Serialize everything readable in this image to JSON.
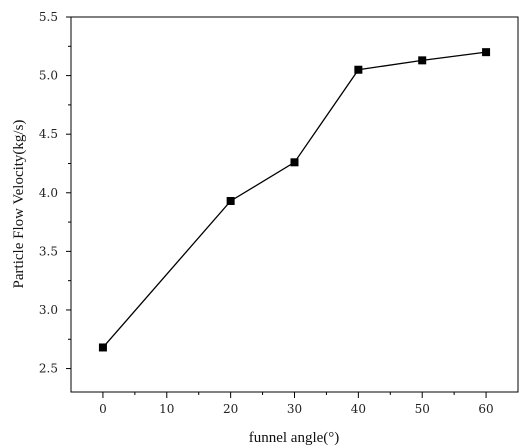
{
  "chart_data": {
    "type": "line",
    "title": "",
    "xlabel": "funnel angle(°)",
    "ylabel": "Particle Flow Velocity(kg/s)",
    "x": [
      0,
      20,
      30,
      40,
      50,
      60
    ],
    "series": [
      {
        "values": [
          2.68,
          3.93,
          4.26,
          5.05,
          5.13,
          5.2
        ]
      }
    ],
    "xlim": [
      -5,
      65
    ],
    "ylim": [
      2.3,
      5.5
    ],
    "xticks": [
      "0",
      "10",
      "20",
      "30",
      "40",
      "50",
      "60"
    ],
    "yticks": [
      "2.5",
      "3.0",
      "3.5",
      "4.0",
      "4.5",
      "5.0",
      "5.5"
    ],
    "grid": false,
    "marker": "square",
    "line_color": "#000000"
  }
}
